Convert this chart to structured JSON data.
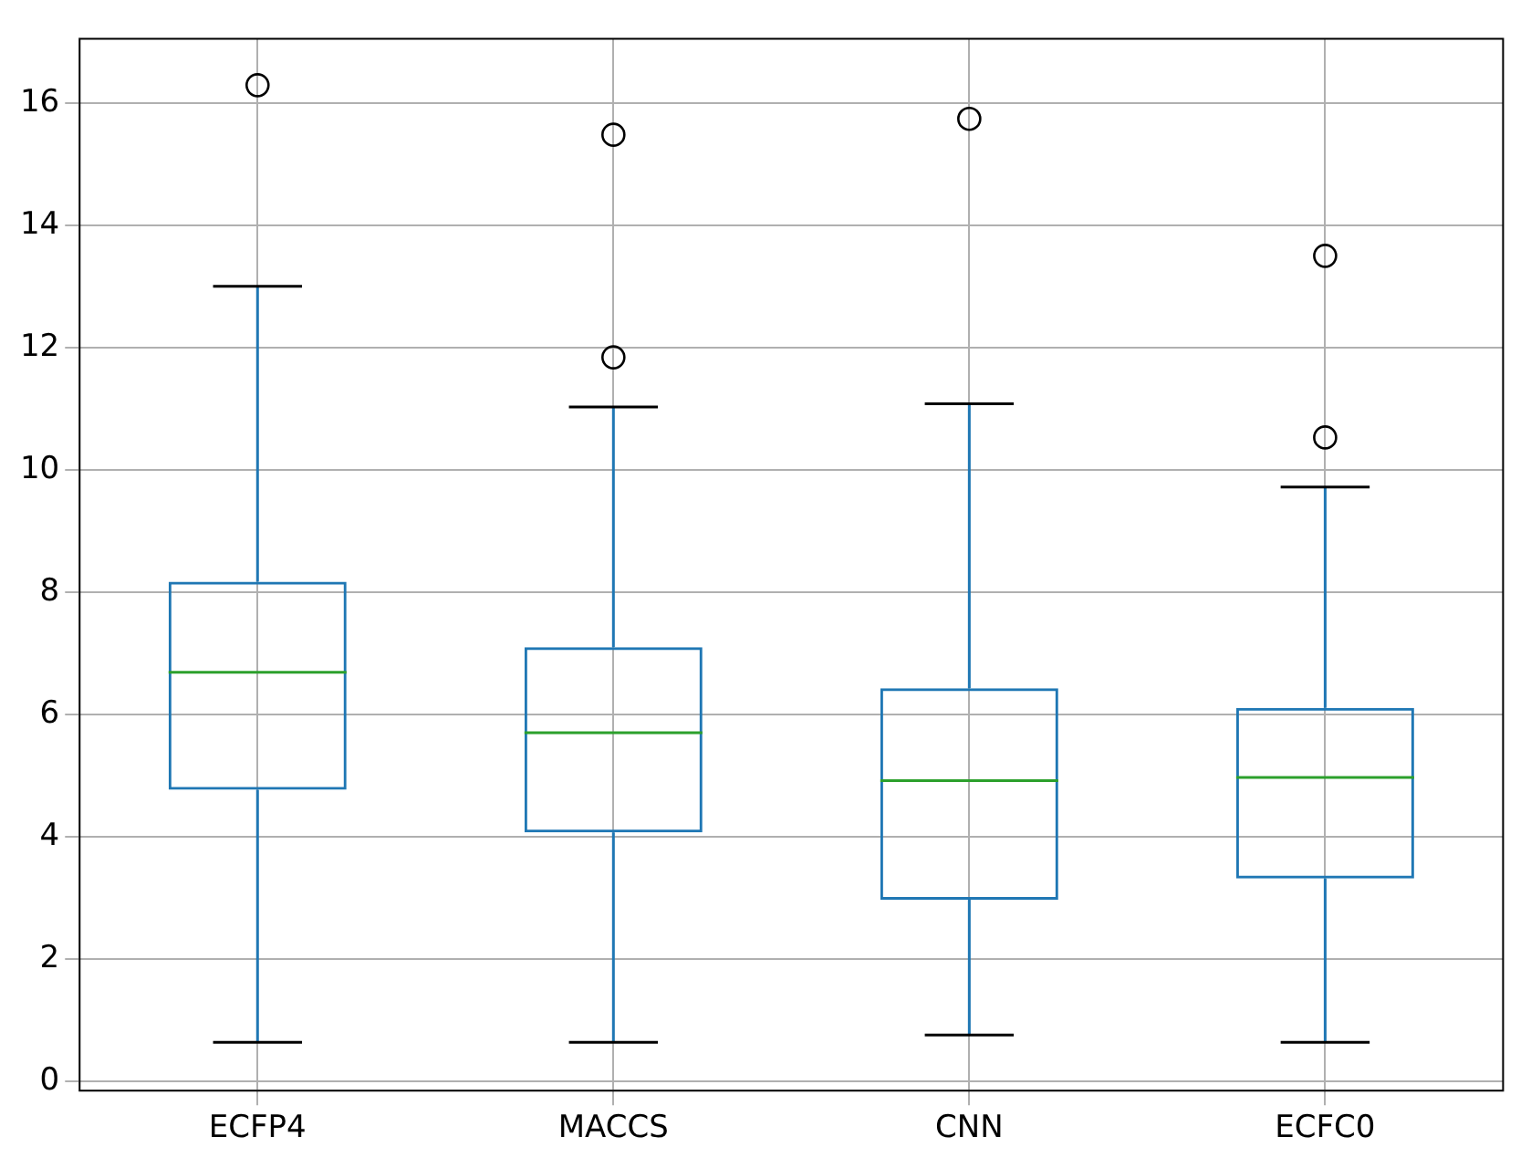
{
  "chart_data": {
    "type": "box",
    "categories": [
      "ECFP4",
      "MACCS",
      "CNN",
      "ECFC0"
    ],
    "color": "#1f77b4",
    "boxes": [
      {
        "low": 0.64,
        "q1": 4.77,
        "median": 6.69,
        "q3": 8.17,
        "high": 13.0,
        "outliers": [
          16.29
        ]
      },
      {
        "low": 0.64,
        "q1": 4.07,
        "median": 5.7,
        "q3": 7.1,
        "high": 11.03,
        "outliers": [
          15.48,
          11.84
        ]
      },
      {
        "low": 0.76,
        "q1": 2.97,
        "median": 4.92,
        "q3": 6.43,
        "high": 11.08,
        "outliers": [
          15.74
        ]
      },
      {
        "low": 0.64,
        "q1": 3.32,
        "median": 4.97,
        "q3": 6.11,
        "high": 9.72,
        "outliers": [
          13.5,
          10.53
        ]
      }
    ],
    "ylim": [
      -0.15,
      17.05
    ],
    "yticks": [
      0,
      2,
      4,
      6,
      8,
      10,
      12,
      14,
      16
    ],
    "grid": true
  }
}
